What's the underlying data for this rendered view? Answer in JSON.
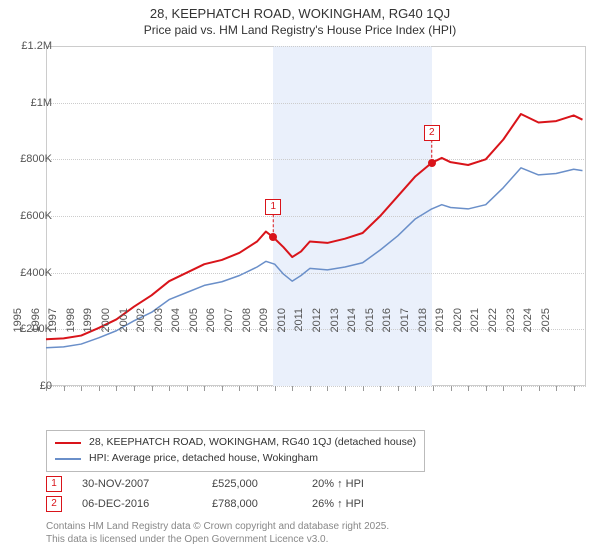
{
  "title_line1": "28, KEEPHATCH ROAD, WOKINGHAM, RG40 1QJ",
  "title_line2": "Price paid vs. HM Land Registry's House Price Index (HPI)",
  "chart": {
    "x_years": [
      1995,
      1996,
      1997,
      1998,
      1999,
      2000,
      2001,
      2002,
      2003,
      2004,
      2005,
      2006,
      2007,
      2008,
      2009,
      2010,
      2011,
      2012,
      2013,
      2014,
      2015,
      2016,
      2017,
      2018,
      2019,
      2020,
      2021,
      2022,
      2023,
      2024,
      2025
    ],
    "x_min": 1995,
    "x_max": 2025.7,
    "y_min": 0,
    "y_max": 1200000,
    "y_ticks": [
      0,
      200000,
      400000,
      600000,
      800000,
      1000000,
      1200000
    ],
    "y_tick_labels": [
      "£0",
      "£200K",
      "£400K",
      "£600K",
      "£800K",
      "£1M",
      "£1.2M"
    ],
    "shaded_ranges": [
      {
        "from": 2007.92,
        "to": 2016.93
      }
    ],
    "series": [
      {
        "name": "subject",
        "color": "#d9141a",
        "width": 2,
        "points": [
          [
            1995.0,
            165000
          ],
          [
            1996.0,
            168000
          ],
          [
            1997.0,
            178000
          ],
          [
            1998.0,
            205000
          ],
          [
            1999.0,
            235000
          ],
          [
            2000.0,
            280000
          ],
          [
            2001.0,
            320000
          ],
          [
            2002.0,
            370000
          ],
          [
            2003.0,
            400000
          ],
          [
            2004.0,
            430000
          ],
          [
            2005.0,
            445000
          ],
          [
            2006.0,
            470000
          ],
          [
            2007.0,
            510000
          ],
          [
            2007.5,
            545000
          ],
          [
            2007.92,
            525000
          ],
          [
            2008.5,
            490000
          ],
          [
            2009.0,
            455000
          ],
          [
            2009.5,
            475000
          ],
          [
            2010.0,
            510000
          ],
          [
            2011.0,
            505000
          ],
          [
            2012.0,
            520000
          ],
          [
            2013.0,
            540000
          ],
          [
            2014.0,
            600000
          ],
          [
            2015.0,
            670000
          ],
          [
            2016.0,
            740000
          ],
          [
            2016.93,
            788000
          ],
          [
            2017.0,
            790000
          ],
          [
            2017.5,
            805000
          ],
          [
            2018.0,
            790000
          ],
          [
            2019.0,
            780000
          ],
          [
            2020.0,
            800000
          ],
          [
            2021.0,
            870000
          ],
          [
            2022.0,
            960000
          ],
          [
            2023.0,
            930000
          ],
          [
            2024.0,
            935000
          ],
          [
            2025.0,
            955000
          ],
          [
            2025.5,
            940000
          ]
        ]
      },
      {
        "name": "hpi",
        "color": "#6a8fc9",
        "width": 1.5,
        "points": [
          [
            1995.0,
            135000
          ],
          [
            1996.0,
            138000
          ],
          [
            1997.0,
            148000
          ],
          [
            1998.0,
            170000
          ],
          [
            1999.0,
            195000
          ],
          [
            2000.0,
            230000
          ],
          [
            2001.0,
            260000
          ],
          [
            2002.0,
            305000
          ],
          [
            2003.0,
            330000
          ],
          [
            2004.0,
            355000
          ],
          [
            2005.0,
            368000
          ],
          [
            2006.0,
            390000
          ],
          [
            2007.0,
            420000
          ],
          [
            2007.5,
            440000
          ],
          [
            2008.0,
            430000
          ],
          [
            2008.5,
            395000
          ],
          [
            2009.0,
            370000
          ],
          [
            2009.5,
            390000
          ],
          [
            2010.0,
            415000
          ],
          [
            2011.0,
            410000
          ],
          [
            2012.0,
            420000
          ],
          [
            2013.0,
            435000
          ],
          [
            2014.0,
            480000
          ],
          [
            2015.0,
            530000
          ],
          [
            2016.0,
            590000
          ],
          [
            2016.93,
            625000
          ],
          [
            2017.5,
            640000
          ],
          [
            2018.0,
            630000
          ],
          [
            2019.0,
            625000
          ],
          [
            2020.0,
            640000
          ],
          [
            2021.0,
            700000
          ],
          [
            2022.0,
            770000
          ],
          [
            2023.0,
            745000
          ],
          [
            2024.0,
            750000
          ],
          [
            2025.0,
            765000
          ],
          [
            2025.5,
            760000
          ]
        ]
      }
    ],
    "markers": [
      {
        "id": "1",
        "x": 2007.92,
        "y": 525000,
        "color": "#d9141a",
        "label_y_offset": -38
      },
      {
        "id": "2",
        "x": 2016.93,
        "y": 788000,
        "color": "#d9141a",
        "label_y_offset": -38
      }
    ]
  },
  "legend": {
    "items": [
      {
        "color": "#d9141a",
        "label": "28, KEEPHATCH ROAD, WOKINGHAM, RG40 1QJ (detached house)"
      },
      {
        "color": "#6a8fc9",
        "label": "HPI: Average price, detached house, Wokingham"
      }
    ]
  },
  "marker_table": [
    {
      "id": "1",
      "color": "#d9141a",
      "date": "30-NOV-2007",
      "price": "£525,000",
      "delta": "20% ↑ HPI"
    },
    {
      "id": "2",
      "color": "#d9141a",
      "date": "06-DEC-2016",
      "price": "£788,000",
      "delta": "26% ↑ HPI"
    }
  ],
  "footer_line1": "Contains HM Land Registry data © Crown copyright and database right 2025.",
  "footer_line2": "This data is licensed under the Open Government Licence v3.0."
}
